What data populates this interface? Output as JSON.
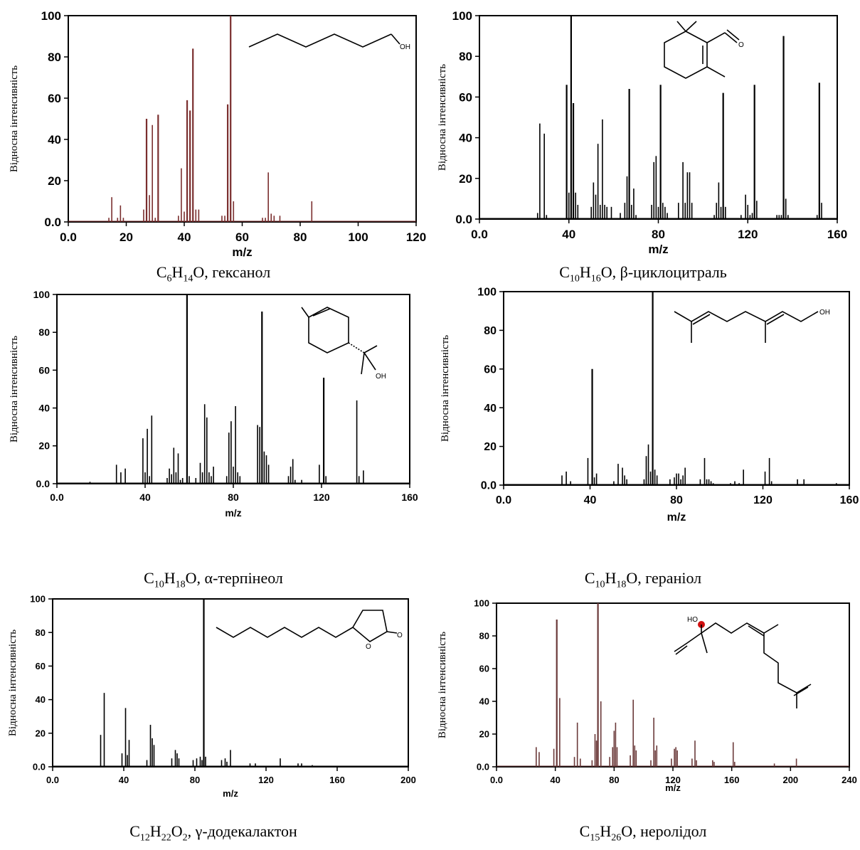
{
  "chart_data": [
    {
      "type": "bar",
      "compound": "гексанол",
      "formula": [
        [
          "C",
          ""
        ],
        [
          "6",
          "sub"
        ],
        [
          "H",
          ""
        ],
        [
          "14",
          "sub"
        ],
        [
          "O, гексанол",
          ""
        ]
      ],
      "xlabel": "m/z",
      "ylabel": "Відносна інтенсивність",
      "xlim": [
        0,
        120
      ],
      "ylim": [
        0,
        100
      ],
      "xticks": [
        "0.0",
        "20",
        "40",
        "60",
        "80",
        "100",
        "120"
      ],
      "yticks": [
        "0.0",
        "20",
        "40",
        "60",
        "80",
        "100"
      ],
      "bar_color": "#7a2e2e",
      "x": [
        14,
        15,
        17,
        18,
        19,
        26,
        27,
        28,
        29,
        30,
        31,
        38,
        39,
        40,
        41,
        42,
        43,
        44,
        45,
        53,
        54,
        55,
        56,
        57,
        67,
        68,
        69,
        70,
        71,
        73,
        84
      ],
      "y": [
        2,
        12,
        2,
        8,
        2,
        6,
        50,
        13,
        47,
        2,
        52,
        3,
        26,
        5,
        59,
        54,
        84,
        6,
        6,
        3,
        3,
        57,
        100,
        10,
        2,
        2,
        24,
        4,
        3,
        3,
        10
      ]
    },
    {
      "type": "bar",
      "compound": "β-циклоцитраль",
      "formula": [
        [
          "C",
          ""
        ],
        [
          "10",
          "sub"
        ],
        [
          "H",
          ""
        ],
        [
          "16",
          "sub"
        ],
        [
          "O, β-циклоцитраль",
          ""
        ]
      ],
      "xlabel": "m/z",
      "ylabel": "Відносна інтенсивність",
      "xlim": [
        0,
        160
      ],
      "ylim": [
        0,
        100
      ],
      "xticks": [
        "0.0",
        "40",
        "80",
        "120",
        "160"
      ],
      "yticks": [
        "0.0",
        "20",
        "40",
        "60",
        "80",
        "100"
      ],
      "bar_color": "#000000",
      "x": [
        26,
        27,
        29,
        30,
        39,
        40,
        41,
        42,
        43,
        44,
        50,
        51,
        52,
        53,
        54,
        55,
        56,
        57,
        59,
        63,
        65,
        66,
        67,
        68,
        69,
        70,
        77,
        78,
        79,
        80,
        81,
        82,
        83,
        84,
        89,
        91,
        92,
        93,
        94,
        95,
        105,
        106,
        107,
        108,
        109,
        110,
        117,
        119,
        120,
        121,
        122,
        123,
        124,
        133,
        134,
        135,
        136,
        137,
        138,
        151,
        152,
        153
      ],
      "y": [
        3,
        47,
        42,
        2,
        66,
        13,
        100,
        57,
        13,
        7,
        6,
        18,
        12,
        37,
        7,
        49,
        7,
        6,
        6,
        3,
        8,
        21,
        64,
        7,
        15,
        2,
        7,
        28,
        31,
        6,
        66,
        8,
        6,
        3,
        8,
        28,
        8,
        23,
        23,
        8,
        2,
        8,
        18,
        6,
        62,
        6,
        2,
        12,
        7,
        2,
        3,
        66,
        9,
        2,
        2,
        2,
        90,
        10,
        2,
        2,
        67,
        8
      ]
    },
    {
      "type": "bar",
      "compound": "α-терпінеол",
      "formula": [
        [
          "C",
          ""
        ],
        [
          "10",
          "sub"
        ],
        [
          "H",
          ""
        ],
        [
          "18",
          "sub"
        ],
        [
          "O, α-терпінеол",
          ""
        ]
      ],
      "xlabel": "m/z",
      "ylabel": "Відносна інтенсивність",
      "xlim": [
        0,
        160
      ],
      "ylim": [
        0,
        100
      ],
      "xticks": [
        "0.0",
        "40",
        "80",
        "120",
        "160"
      ],
      "yticks": [
        "0.0",
        "20",
        "40",
        "60",
        "80",
        "100"
      ],
      "bar_color": "#000000",
      "x": [
        15,
        27,
        29,
        31,
        39,
        40,
        41,
        42,
        43,
        50,
        51,
        52,
        53,
        54,
        55,
        56,
        57,
        59,
        60,
        63,
        65,
        66,
        67,
        68,
        69,
        70,
        71,
        77,
        78,
        79,
        80,
        81,
        82,
        83,
        91,
        92,
        93,
        94,
        95,
        96,
        105,
        106,
        107,
        108,
        111,
        119,
        121,
        122,
        136,
        137,
        139
      ],
      "y": [
        1,
        10,
        6,
        8,
        24,
        6,
        29,
        4,
        36,
        3,
        8,
        5,
        19,
        6,
        16,
        2,
        3,
        100,
        4,
        3,
        11,
        6,
        42,
        35,
        6,
        4,
        9,
        4,
        27,
        33,
        9,
        41,
        6,
        4,
        31,
        30,
        91,
        17,
        15,
        10,
        4,
        9,
        13,
        2,
        2,
        10,
        56,
        4,
        44,
        4,
        7
      ]
    },
    {
      "type": "bar",
      "compound": "геранiол",
      "formula": [
        [
          "C",
          ""
        ],
        [
          "10",
          "sub"
        ],
        [
          "H",
          ""
        ],
        [
          "18",
          "sub"
        ],
        [
          "O, гераніол",
          ""
        ]
      ],
      "xlabel": "m/z",
      "ylabel": "Відносна інтенсивність",
      "xlim": [
        0,
        160
      ],
      "ylim": [
        0,
        100
      ],
      "xticks": [
        "0.0",
        "40",
        "80",
        "120",
        "160"
      ],
      "yticks": [
        "0.0",
        "20",
        "40",
        "60",
        "80",
        "100"
      ],
      "bar_color": "#000000",
      "x": [
        27,
        29,
        31,
        39,
        41,
        42,
        43,
        51,
        53,
        55,
        56,
        57,
        65,
        66,
        67,
        68,
        69,
        70,
        71,
        77,
        79,
        80,
        81,
        82,
        83,
        84,
        91,
        93,
        94,
        95,
        96,
        97,
        105,
        107,
        109,
        111,
        121,
        123,
        124,
        136,
        139,
        154
      ],
      "y": [
        5,
        7,
        2,
        14,
        60,
        4,
        6,
        2,
        11,
        9,
        5,
        3,
        3,
        15,
        21,
        7,
        100,
        8,
        5,
        3,
        4,
        6,
        6,
        3,
        5,
        9,
        3,
        14,
        3,
        3,
        2,
        1,
        1,
        2,
        1,
        8,
        7,
        14,
        2,
        3,
        3,
        1
      ]
    },
    {
      "type": "bar",
      "compound": "γ-додекалактон",
      "formula": [
        [
          "C",
          ""
        ],
        [
          "12",
          "sub"
        ],
        [
          "H",
          ""
        ],
        [
          "22",
          "sub"
        ],
        [
          "O",
          ""
        ],
        [
          "2",
          "sub"
        ],
        [
          ", γ-додекалактон",
          ""
        ]
      ],
      "xlabel": "m/z",
      "ylabel": "Відносна інтенсивність",
      "xlim": [
        0,
        200
      ],
      "ylim": [
        0,
        100
      ],
      "xticks": [
        "0.0",
        "40",
        "80",
        "120",
        "160",
        "200"
      ],
      "yticks": [
        "0.0",
        "20",
        "40",
        "60",
        "80",
        "100"
      ],
      "bar_color": "#000000",
      "x": [
        27,
        29,
        39,
        41,
        42,
        43,
        53,
        55,
        56,
        57,
        67,
        69,
        70,
        71,
        79,
        81,
        83,
        84,
        85,
        86,
        95,
        97,
        98,
        100,
        111,
        114,
        128,
        138,
        140,
        146
      ],
      "y": [
        19,
        44,
        8,
        35,
        7,
        16,
        4,
        25,
        17,
        13,
        5,
        10,
        8,
        5,
        4,
        5,
        6,
        4,
        100,
        6,
        4,
        5,
        3,
        10,
        2,
        2,
        5,
        2,
        2,
        1
      ]
    },
    {
      "type": "bar",
      "compound": "неролідол",
      "formula": [
        [
          "C",
          ""
        ],
        [
          "15",
          "sub"
        ],
        [
          "H",
          ""
        ],
        [
          "26",
          "sub"
        ],
        [
          "O, неролідол",
          ""
        ]
      ],
      "xlabel": "m/z",
      "ylabel": "Відносна інтенсивність",
      "xlim": [
        0,
        240
      ],
      "ylim": [
        0,
        100
      ],
      "xticks": [
        "0.0",
        "40",
        "80",
        "120",
        "160",
        "200",
        "240"
      ],
      "yticks": [
        "0.0",
        "20",
        "40",
        "60",
        "80",
        "100"
      ],
      "bar_color": "#6b3a3a",
      "x": [
        27,
        29,
        39,
        41,
        43,
        53,
        55,
        57,
        65,
        67,
        68,
        69,
        71,
        77,
        79,
        80,
        81,
        82,
        91,
        93,
        94,
        95,
        105,
        107,
        108,
        109,
        119,
        121,
        122,
        123,
        133,
        135,
        136,
        147,
        148,
        161,
        162,
        189,
        204
      ],
      "y": [
        12,
        9,
        11,
        90,
        42,
        6,
        27,
        5,
        4,
        20,
        16,
        100,
        40,
        6,
        12,
        22,
        27,
        12,
        7,
        41,
        13,
        10,
        4,
        30,
        10,
        13,
        5,
        11,
        12,
        10,
        5,
        16,
        4,
        4,
        3,
        15,
        3,
        2,
        5
      ]
    }
  ]
}
